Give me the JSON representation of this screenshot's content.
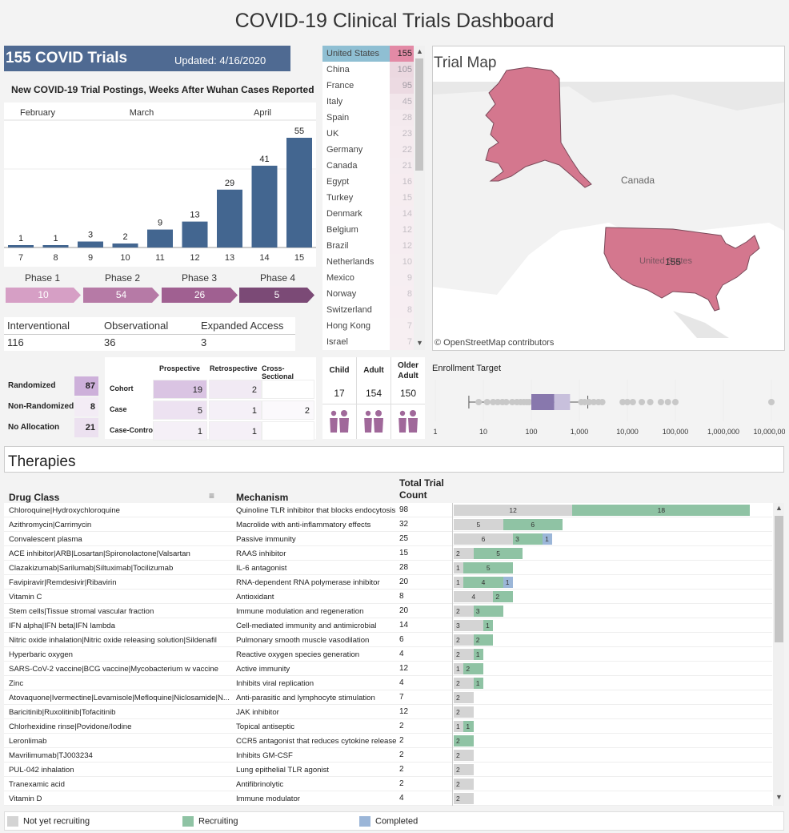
{
  "header": {
    "title": "COVID-19 Clinical Trials Dashboard"
  },
  "kpi": {
    "count_label": "155 COVID Trials",
    "updated": "Updated: 4/16/2020"
  },
  "weekly": {
    "title": "New COVID-19 Trial Postings, Weeks After Wuhan Cases Reported",
    "months": [
      "February",
      "March",
      "April"
    ],
    "weeks": [
      "7",
      "8",
      "9",
      "10",
      "11",
      "12",
      "13",
      "14",
      "15"
    ],
    "values": [
      1,
      1,
      3,
      2,
      9,
      13,
      29,
      41,
      55
    ],
    "bar_color": "#436690"
  },
  "phases": [
    {
      "label": "Phase 1",
      "value": "10",
      "color": "#d69fc5"
    },
    {
      "label": "Phase 2",
      "value": "54",
      "color": "#b67aa6"
    },
    {
      "label": "Phase 3",
      "value": "26",
      "color": "#a06091"
    },
    {
      "label": "Phase 4",
      "value": "5",
      "color": "#7b4a76"
    }
  ],
  "study_types": {
    "headers": [
      "Interventional",
      "Observational",
      "Expanded Access"
    ],
    "values": [
      "116",
      "36",
      "3"
    ]
  },
  "allocation": [
    {
      "label": "Randomized",
      "value": "87",
      "color": "#cdb0da"
    },
    {
      "label": "Non-Randomized",
      "value": "8",
      "color": "#f3ecf5"
    },
    {
      "label": "No Allocation",
      "value": "21",
      "color": "#ece1f0"
    }
  ],
  "design": {
    "columns": [
      "Prospective",
      "Retrospective",
      "Cross-Sectional"
    ],
    "rows": [
      {
        "label": "Cohort",
        "values": [
          "19",
          "2",
          ""
        ]
      },
      {
        "label": "Case",
        "values": [
          "5",
          "1",
          "2"
        ]
      },
      {
        "label": "Case-Control",
        "values": [
          "1",
          "1",
          ""
        ]
      }
    ]
  },
  "countries": [
    {
      "name": "United States",
      "count": "155"
    },
    {
      "name": "China",
      "count": "105"
    },
    {
      "name": "France",
      "count": "95"
    },
    {
      "name": "Italy",
      "count": "45"
    },
    {
      "name": "Spain",
      "count": "28"
    },
    {
      "name": "UK",
      "count": "23"
    },
    {
      "name": "Germany",
      "count": "22"
    },
    {
      "name": "Canada",
      "count": "21"
    },
    {
      "name": "Egypt",
      "count": "16"
    },
    {
      "name": "Turkey",
      "count": "15"
    },
    {
      "name": "Denmark",
      "count": "14"
    },
    {
      "name": "Belgium",
      "count": "12"
    },
    {
      "name": "Brazil",
      "count": "12"
    },
    {
      "name": "Netherlands",
      "count": "10"
    },
    {
      "name": "Mexico",
      "count": "9"
    },
    {
      "name": "Norway",
      "count": "8"
    },
    {
      "name": "Switzerland",
      "count": "8"
    },
    {
      "name": "Hong Kong",
      "count": "7"
    },
    {
      "name": "Israel",
      "count": "7"
    }
  ],
  "map": {
    "title": "Trial Map",
    "canada_label": "Canada",
    "us_label": "United States",
    "us_count": "155",
    "attribution": "© OpenStreetMap contributors"
  },
  "age": {
    "headers": [
      "Child",
      "Adult",
      "Older Adult"
    ],
    "values": [
      "17",
      "154",
      "150"
    ]
  },
  "enrollment": {
    "title": "Enrollment Target",
    "ticks": [
      "1",
      "10",
      "100",
      "1,000",
      "10,000",
      "100,000",
      "1,000,000",
      "10,000,000"
    ]
  },
  "therapies": {
    "title": "Therapies",
    "columns": {
      "drug": "Drug Class",
      "mechanism": "Mechanism",
      "total": "Total Trial Count"
    },
    "rows": [
      {
        "drug": "Chloroquine|Hydroxychloroquine",
        "mechanism": "Quinoline TLR inhibitor that blocks endocytosis",
        "total": "98",
        "nyr": 12,
        "rec": 18,
        "comp": 0
      },
      {
        "drug": "Azithromycin|Carrimycin",
        "mechanism": "Macrolide with anti-inflammatory effects",
        "total": "32",
        "nyr": 5,
        "rec": 6,
        "comp": 0
      },
      {
        "drug": "Convalescent plasma",
        "mechanism": "Passive immunity",
        "total": "25",
        "nyr": 6,
        "rec": 3,
        "comp": 1
      },
      {
        "drug": "ACE inhibitor|ARB|Losartan|Spironolactone|Valsartan",
        "mechanism": "RAAS inhibitor",
        "total": "15",
        "nyr": 2,
        "rec": 5,
        "comp": 0
      },
      {
        "drug": "Clazakizumab|Sarilumab|Siltuximab|Tocilizumab",
        "mechanism": "IL-6 antagonist",
        "total": "28",
        "nyr": 1,
        "rec": 5,
        "comp": 0
      },
      {
        "drug": "Favipiravir|Remdesivir|Ribavirin",
        "mechanism": "RNA-dependent RNA polymerase inhibitor",
        "total": "20",
        "nyr": 1,
        "rec": 4,
        "comp": 1
      },
      {
        "drug": "Vitamin C",
        "mechanism": "Antioxidant",
        "total": "8",
        "nyr": 4,
        "rec": 2,
        "comp": 0
      },
      {
        "drug": "Stem cells|Tissue stromal vascular fraction",
        "mechanism": "Immune modulation and regeneration",
        "total": "20",
        "nyr": 2,
        "rec": 3,
        "comp": 0
      },
      {
        "drug": "IFN alpha|IFN beta|IFN lambda",
        "mechanism": "Cell-mediated immunity and antimicrobial",
        "total": "14",
        "nyr": 3,
        "rec": 1,
        "comp": 0
      },
      {
        "drug": "Nitric oxide inhalation|Nitric oxide releasing solution|Sildenafil",
        "mechanism": "Pulmonary smooth muscle vasodilation",
        "total": "6",
        "nyr": 2,
        "rec": 2,
        "comp": 0
      },
      {
        "drug": "Hyperbaric oxygen",
        "mechanism": "Reactive oxygen species generation",
        "total": "4",
        "nyr": 2,
        "rec": 1,
        "comp": 0
      },
      {
        "drug": "SARS-CoV-2 vaccine|BCG vaccine|Mycobacterium w vaccine",
        "mechanism": "Active immunity",
        "total": "12",
        "nyr": 1,
        "rec": 2,
        "comp": 0
      },
      {
        "drug": "Zinc",
        "mechanism": "Inhibits viral replication",
        "total": "4",
        "nyr": 2,
        "rec": 1,
        "comp": 0
      },
      {
        "drug": "Atovaquone|Ivermectine|Levamisole|Mefloquine|Niclosamide|N...",
        "mechanism": "Anti-parasitic and lymphocyte stimulation",
        "total": "7",
        "nyr": 2,
        "rec": 0,
        "comp": 0
      },
      {
        "drug": "Baricitinib|Ruxolitinib|Tofacitinib",
        "mechanism": "JAK inhibitor",
        "total": "12",
        "nyr": 2,
        "rec": 0,
        "comp": 0
      },
      {
        "drug": "Chlorhexidine rinse|Povidone/Iodine",
        "mechanism": "Topical antiseptic",
        "total": "2",
        "nyr": 1,
        "rec": 1,
        "comp": 0
      },
      {
        "drug": "Leronlimab",
        "mechanism": "CCR5 antagonist that reduces cytokine release",
        "total": "2",
        "nyr": 0,
        "rec": 2,
        "comp": 0
      },
      {
        "drug": "Mavrilimumab|TJ003234",
        "mechanism": "Inhibits GM-CSF",
        "total": "2",
        "nyr": 2,
        "rec": 0,
        "comp": 0
      },
      {
        "drug": "PUL-042 inhalation",
        "mechanism": "Lung epithelial TLR agonist",
        "total": "2",
        "nyr": 2,
        "rec": 0,
        "comp": 0
      },
      {
        "drug": "Tranexamic acid",
        "mechanism": "Antifibrinolytic",
        "total": "2",
        "nyr": 2,
        "rec": 0,
        "comp": 0
      },
      {
        "drug": "Vitamin D",
        "mechanism": "Immune modulator",
        "total": "4",
        "nyr": 2,
        "rec": 0,
        "comp": 0
      }
    ]
  },
  "legend": [
    {
      "label": "Not yet recruiting",
      "color": "#d4d4d4"
    },
    {
      "label": "Recruiting",
      "color": "#8fc3a4"
    },
    {
      "label": "Completed",
      "color": "#9bb6d8"
    }
  ],
  "colors": {
    "map_fill": "#d4778e",
    "selected_row": "#8fbfd3"
  }
}
